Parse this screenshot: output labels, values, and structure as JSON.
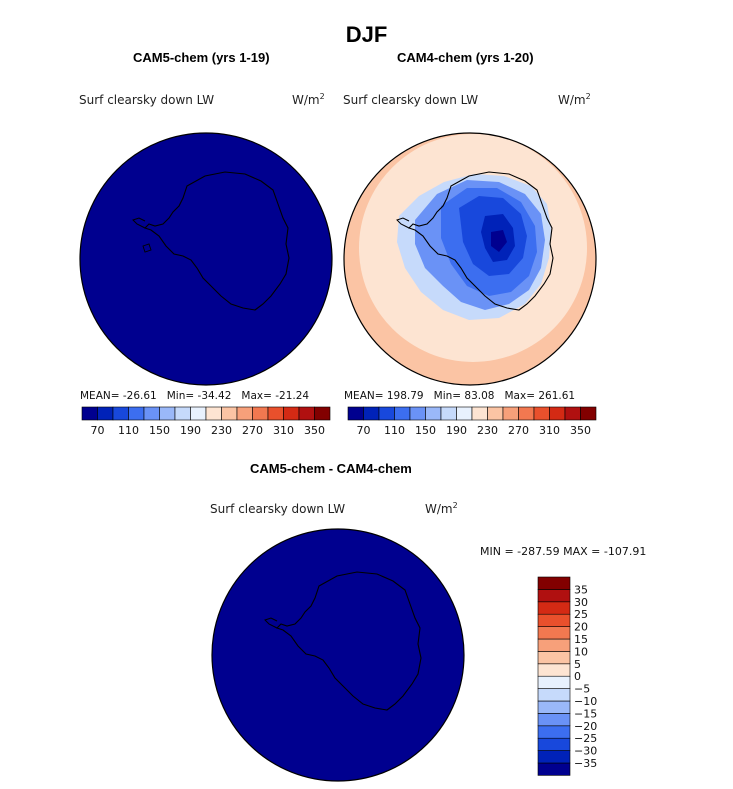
{
  "title": "DJF",
  "colors": [
    "#00008f",
    "#0022b8",
    "#1848dc",
    "#3c6ef0",
    "#6a92f6",
    "#9ab8f9",
    "#c6dafb",
    "#e8f1fd",
    "#fde4d2",
    "#fbc4a4",
    "#f7a07a",
    "#f27850",
    "#e9502c",
    "#d42a14",
    "#b01010",
    "#820000"
  ],
  "panels": {
    "cam5": {
      "heading": "CAM5-chem (yrs 1-19)",
      "variable": "Surf clearsky down LW",
      "units_base": "W/m",
      "units_exp": "2",
      "stats": {
        "mean_label": "MEAN=",
        "mean": "-26.61",
        "min_label": "Min=",
        "min": "-34.42",
        "max_label": "Max=",
        "max": "-21.24"
      }
    },
    "cam4": {
      "heading": "CAM4-chem (yrs 1-20)",
      "variable": "Surf clearsky down LW",
      "units_base": "W/m",
      "units_exp": "2",
      "stats": {
        "mean_label": "MEAN=",
        "mean": "198.79",
        "min_label": "Min=",
        "min": "83.08",
        "max_label": "Max=",
        "max": "261.61"
      }
    },
    "diff": {
      "heading": "CAM5-chem - CAM4-chem",
      "variable": "Surf clearsky down LW",
      "units_base": "W/m",
      "units_exp": "2",
      "minmax": "MIN = -287.59  MAX = -107.91"
    }
  },
  "colorbar_top": {
    "labels": [
      "70",
      "110",
      "150",
      "190",
      "230",
      "270",
      "310",
      "350"
    ]
  },
  "colorbar_diff": {
    "colors": [
      "#00008f",
      "#0022b8",
      "#1848dc",
      "#3c6ef0",
      "#6a92f6",
      "#9ab8f9",
      "#c6dafb",
      "#e8f1fd",
      "#fde4d2",
      "#fbc4a4",
      "#f7a07a",
      "#f27850",
      "#e9502c",
      "#d42a14",
      "#b01010",
      "#820000"
    ],
    "labels": [
      "−35",
      "−30",
      "−25",
      "−20",
      "−15",
      "−10",
      "−5",
      "0",
      "5",
      "10",
      "15",
      "20",
      "25",
      "30",
      "35"
    ]
  }
}
